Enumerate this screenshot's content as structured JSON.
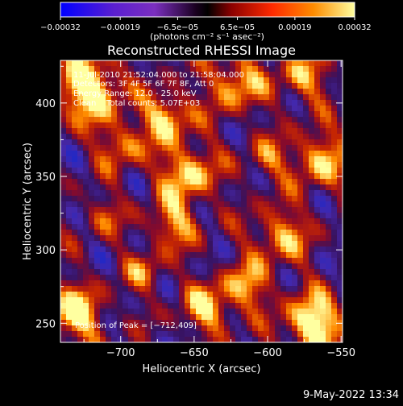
{
  "chart_data": {
    "type": "heatmap",
    "title": "Reconstructed RHESSI Image",
    "xlabel": "Heliocentric X (arcsec)",
    "ylabel": "Heliocentric Y (arcsec)",
    "xlim": [
      -741,
      -549
    ],
    "ylim": [
      237,
      429
    ],
    "x_ticks": [
      -700,
      -650,
      -600,
      -550
    ],
    "x_tick_labels": [
      "−700",
      "−650",
      "−600",
      "−550"
    ],
    "y_ticks": [
      250,
      300,
      350,
      400
    ],
    "y_tick_labels": [
      "250",
      "300",
      "350",
      "400"
    ],
    "colorbar": {
      "min": -0.00032,
      "max": 0.00032,
      "ticks": [
        -0.00032,
        -0.00019,
        -6.5e-05,
        6.5e-05,
        0.00019,
        0.00032
      ],
      "tick_labels": [
        "−0.00032",
        "−0.00019",
        "−6.5e−05",
        "6.5e−05",
        "0.00019",
        "0.00032"
      ],
      "unit": "(photons cm⁻² s⁻¹ asec⁻²)",
      "colors": [
        "#0000ff",
        "#7b2fbf",
        "#000000",
        "#8a0000",
        "#ff2a00",
        "#ff8c00",
        "#ffffa0"
      ]
    },
    "annotations": [
      "11-Jul-2010 21:52:04.000 to 21:58:04.000",
      "Detectors: 3F 4F 5F 6F 7F 8F, Att 0",
      "Energy Range: 12.0 - 25.0 keV",
      "Clean    Total counts: 5.07E+03"
    ],
    "peak_label": "Position of Peak = [−712,409]",
    "peak": [
      -712,
      409
    ],
    "grid": false
  },
  "footer": {
    "timestamp": "9-May-2022 13:34"
  }
}
